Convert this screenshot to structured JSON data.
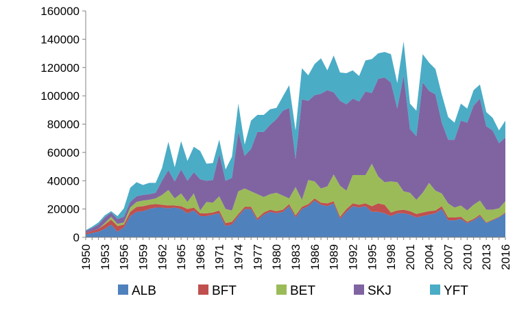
{
  "chart_data": {
    "type": "area",
    "stacked": true,
    "x_start": 1950,
    "x_end": 2016,
    "x_tick_labels": [
      "1950",
      "1953",
      "1956",
      "1959",
      "1962",
      "1965",
      "1968",
      "1971",
      "1974",
      "1977",
      "1980",
      "1983",
      "1986",
      "1989",
      "1992",
      "1995",
      "1998",
      "2001",
      "2004",
      "2007",
      "2010",
      "2013",
      "2016"
    ],
    "y_tick_labels": [
      "0",
      "20000",
      "40000",
      "60000",
      "80000",
      "100000",
      "120000",
      "140000",
      "160000"
    ],
    "ylim": [
      0,
      160000
    ],
    "grid": false,
    "legend_position": "bottom",
    "title": "",
    "xlabel": "",
    "ylabel": "",
    "series": [
      {
        "name": "ALB",
        "color": "#4f81bd",
        "values": [
          2000,
          3000,
          4000,
          6000,
          9000,
          4000,
          7000,
          15000,
          18000,
          18500,
          20000,
          21000,
          21000,
          20500,
          21000,
          20000,
          17000,
          19000,
          15000,
          15000,
          16000,
          17000,
          8000,
          9000,
          15000,
          20000,
          20000,
          12000,
          16000,
          18000,
          17000,
          18000,
          22000,
          14000,
          20000,
          22000,
          26000,
          23000,
          22000,
          24000,
          13000,
          18000,
          22000,
          21000,
          22000,
          18000,
          18000,
          17000,
          15000,
          17000,
          17000,
          16000,
          14000,
          15000,
          16000,
          17000,
          20000,
          12000,
          12000,
          13000,
          10000,
          12000,
          15000,
          10000,
          12000,
          14000,
          17000
        ]
      },
      {
        "name": "BFT",
        "color": "#c0504d",
        "values": [
          1000,
          1500,
          2000,
          3000,
          3500,
          4000,
          2000,
          3000,
          3500,
          3500,
          3000,
          2500,
          2000,
          2000,
          1500,
          2000,
          3000,
          2000,
          2000,
          2000,
          1500,
          2000,
          2000,
          2000,
          1500,
          1500,
          1500,
          1500,
          1500,
          1500,
          1500,
          1500,
          1500,
          1500,
          1500,
          1500,
          1500,
          1500,
          2000,
          1500,
          1500,
          2000,
          2000,
          2000,
          2000,
          4000,
          6000,
          6000,
          2500,
          2000,
          2500,
          2500,
          2500,
          2500,
          2500,
          2000,
          2000,
          2000,
          2000,
          1500,
          1000,
          1000,
          1000,
          500,
          500,
          500,
          500
        ]
      },
      {
        "name": "BET",
        "color": "#9bbb59",
        "values": [
          0,
          0,
          0,
          1000,
          2000,
          1500,
          1500,
          3000,
          3500,
          4000,
          3500,
          4000,
          7000,
          11000,
          5000,
          9000,
          5000,
          10000,
          2000,
          8000,
          7000,
          10000,
          10000,
          8000,
          16000,
          13000,
          11000,
          17000,
          11000,
          11000,
          13000,
          10000,
          4000,
          20000,
          5000,
          17000,
          12000,
          10000,
          12000,
          19000,
          22000,
          13000,
          20000,
          21000,
          20000,
          30000,
          19000,
          16000,
          22000,
          20000,
          13000,
          13000,
          10000,
          14000,
          20000,
          14000,
          9000,
          10000,
          7000,
          8000,
          8000,
          10000,
          10000,
          9000,
          7000,
          6000,
          8000
        ]
      },
      {
        "name": "SKJ",
        "color": "#8064a2",
        "values": [
          1500,
          2000,
          3000,
          4000,
          3000,
          3500,
          4000,
          4000,
          4000,
          4000,
          4000,
          4000,
          10000,
          14000,
          12000,
          17000,
          15000,
          15000,
          22000,
          15000,
          16000,
          30000,
          20000,
          23000,
          42000,
          23000,
          30000,
          44000,
          46000,
          49000,
          52000,
          60000,
          64000,
          20000,
          71000,
          56000,
          61000,
          67000,
          68000,
          58000,
          60000,
          61000,
          54000,
          52000,
          59000,
          50000,
          69000,
          74000,
          70000,
          52000,
          82000,
          45000,
          45000,
          78000,
          65000,
          68000,
          50000,
          45000,
          48000,
          60000,
          62000,
          70000,
          72000,
          59000,
          56000,
          46000,
          45000
        ]
      },
      {
        "name": "YFT",
        "color": "#4bacc6",
        "values": [
          500,
          1000,
          1500,
          1500,
          1000,
          2000,
          6000,
          10000,
          10000,
          7000,
          8000,
          7000,
          9000,
          20000,
          10000,
          20000,
          14000,
          18000,
          20000,
          12000,
          12000,
          10000,
          8000,
          15000,
          20000,
          8000,
          20000,
          12000,
          12000,
          11000,
          8000,
          10000,
          16000,
          20000,
          22000,
          18000,
          22000,
          25000,
          14000,
          26000,
          20000,
          22000,
          20000,
          18000,
          22000,
          24000,
          18000,
          18000,
          20000,
          18000,
          24000,
          18000,
          18000,
          20000,
          20000,
          18000,
          20000,
          16000,
          12000,
          12000,
          10000,
          11000,
          10000,
          10000,
          9000,
          9000,
          12000
        ]
      }
    ]
  }
}
